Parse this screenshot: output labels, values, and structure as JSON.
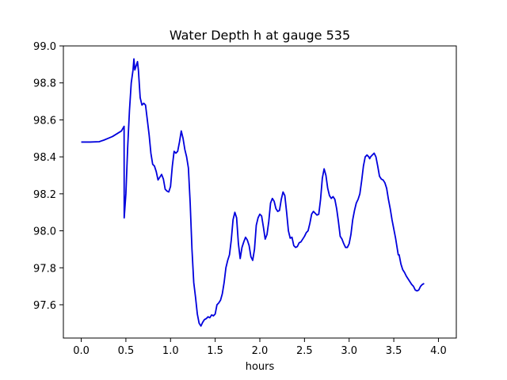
{
  "chart_data": {
    "type": "line",
    "title": "Water Depth h at gauge 535",
    "xlabel": "hours",
    "ylabel": "",
    "xlim": [
      -0.2,
      4.2
    ],
    "ylim": [
      97.42,
      99.0
    ],
    "xticks": [
      0.0,
      0.5,
      1.0,
      1.5,
      2.0,
      2.5,
      3.0,
      3.5,
      4.0
    ],
    "xtick_labels": [
      "0.0",
      "0.5",
      "1.0",
      "1.5",
      "2.0",
      "2.5",
      "3.0",
      "3.5",
      "4.0"
    ],
    "yticks": [
      97.6,
      97.8,
      98.0,
      98.2,
      98.4,
      98.6,
      98.8,
      99.0
    ],
    "ytick_labels": [
      "97.6",
      "97.8",
      "98.0",
      "98.2",
      "98.4",
      "98.6",
      "98.8",
      "99.0"
    ],
    "grid": false,
    "line_color": "#0000dd",
    "series": [
      {
        "points": [
          [
            0.0,
            98.48
          ],
          [
            0.1,
            98.48
          ],
          [
            0.2,
            98.482
          ],
          [
            0.25,
            98.49
          ],
          [
            0.3,
            98.5
          ],
          [
            0.35,
            98.51
          ],
          [
            0.4,
            98.525
          ],
          [
            0.45,
            98.54
          ],
          [
            0.48,
            98.565
          ],
          [
            0.481,
            98.07
          ],
          [
            0.5,
            98.2
          ],
          [
            0.52,
            98.45
          ],
          [
            0.54,
            98.65
          ],
          [
            0.56,
            98.8
          ],
          [
            0.58,
            98.87
          ],
          [
            0.59,
            98.93
          ],
          [
            0.6,
            98.87
          ],
          [
            0.62,
            98.9
          ],
          [
            0.63,
            98.915
          ],
          [
            0.64,
            98.87
          ],
          [
            0.66,
            98.72
          ],
          [
            0.68,
            98.68
          ],
          [
            0.7,
            98.69
          ],
          [
            0.72,
            98.68
          ],
          [
            0.74,
            98.6
          ],
          [
            0.76,
            98.52
          ],
          [
            0.78,
            98.42
          ],
          [
            0.8,
            98.36
          ],
          [
            0.82,
            98.35
          ],
          [
            0.84,
            98.32
          ],
          [
            0.86,
            98.275
          ],
          [
            0.88,
            98.29
          ],
          [
            0.9,
            98.305
          ],
          [
            0.92,
            98.28
          ],
          [
            0.94,
            98.225
          ],
          [
            0.96,
            98.215
          ],
          [
            0.98,
            98.21
          ],
          [
            1.0,
            98.24
          ],
          [
            1.02,
            98.35
          ],
          [
            1.04,
            98.43
          ],
          [
            1.06,
            98.42
          ],
          [
            1.08,
            98.43
          ],
          [
            1.1,
            98.48
          ],
          [
            1.12,
            98.54
          ],
          [
            1.14,
            98.5
          ],
          [
            1.16,
            98.44
          ],
          [
            1.18,
            98.4
          ],
          [
            1.2,
            98.34
          ],
          [
            1.22,
            98.15
          ],
          [
            1.24,
            97.9
          ],
          [
            1.26,
            97.72
          ],
          [
            1.28,
            97.64
          ],
          [
            1.3,
            97.55
          ],
          [
            1.32,
            97.5
          ],
          [
            1.34,
            97.485
          ],
          [
            1.36,
            97.505
          ],
          [
            1.38,
            97.52
          ],
          [
            1.4,
            97.525
          ],
          [
            1.42,
            97.535
          ],
          [
            1.44,
            97.53
          ],
          [
            1.46,
            97.545
          ],
          [
            1.48,
            97.54
          ],
          [
            1.5,
            97.55
          ],
          [
            1.52,
            97.6
          ],
          [
            1.54,
            97.61
          ],
          [
            1.56,
            97.625
          ],
          [
            1.58,
            97.66
          ],
          [
            1.6,
            97.72
          ],
          [
            1.62,
            97.8
          ],
          [
            1.64,
            97.84
          ],
          [
            1.66,
            97.87
          ],
          [
            1.68,
            97.95
          ],
          [
            1.7,
            98.06
          ],
          [
            1.72,
            98.1
          ],
          [
            1.74,
            98.07
          ],
          [
            1.76,
            97.93
          ],
          [
            1.78,
            97.85
          ],
          [
            1.8,
            97.91
          ],
          [
            1.82,
            97.94
          ],
          [
            1.84,
            97.965
          ],
          [
            1.86,
            97.95
          ],
          [
            1.88,
            97.92
          ],
          [
            1.9,
            97.86
          ],
          [
            1.92,
            97.84
          ],
          [
            1.94,
            97.9
          ],
          [
            1.96,
            98.03
          ],
          [
            1.98,
            98.07
          ],
          [
            2.0,
            98.09
          ],
          [
            2.02,
            98.08
          ],
          [
            2.04,
            98.02
          ],
          [
            2.06,
            97.955
          ],
          [
            2.08,
            97.98
          ],
          [
            2.1,
            98.05
          ],
          [
            2.12,
            98.15
          ],
          [
            2.14,
            98.175
          ],
          [
            2.16,
            98.16
          ],
          [
            2.18,
            98.12
          ],
          [
            2.2,
            98.105
          ],
          [
            2.22,
            98.11
          ],
          [
            2.24,
            98.17
          ],
          [
            2.26,
            98.21
          ],
          [
            2.28,
            98.19
          ],
          [
            2.3,
            98.1
          ],
          [
            2.32,
            98.0
          ],
          [
            2.34,
            97.96
          ],
          [
            2.36,
            97.965
          ],
          [
            2.38,
            97.92
          ],
          [
            2.4,
            97.91
          ],
          [
            2.42,
            97.915
          ],
          [
            2.44,
            97.935
          ],
          [
            2.46,
            97.94
          ],
          [
            2.48,
            97.955
          ],
          [
            2.5,
            97.97
          ],
          [
            2.52,
            97.99
          ],
          [
            2.54,
            98.0
          ],
          [
            2.56,
            98.04
          ],
          [
            2.58,
            98.09
          ],
          [
            2.6,
            98.105
          ],
          [
            2.62,
            98.095
          ],
          [
            2.64,
            98.085
          ],
          [
            2.66,
            98.09
          ],
          [
            2.68,
            98.17
          ],
          [
            2.7,
            98.285
          ],
          [
            2.72,
            98.335
          ],
          [
            2.74,
            98.3
          ],
          [
            2.76,
            98.23
          ],
          [
            2.78,
            98.19
          ],
          [
            2.8,
            98.175
          ],
          [
            2.82,
            98.185
          ],
          [
            2.84,
            98.17
          ],
          [
            2.86,
            98.12
          ],
          [
            2.88,
            98.05
          ],
          [
            2.9,
            97.97
          ],
          [
            2.92,
            97.955
          ],
          [
            2.94,
            97.93
          ],
          [
            2.96,
            97.91
          ],
          [
            2.98,
            97.91
          ],
          [
            3.0,
            97.93
          ],
          [
            3.02,
            97.98
          ],
          [
            3.04,
            98.06
          ],
          [
            3.06,
            98.11
          ],
          [
            3.08,
            98.15
          ],
          [
            3.1,
            98.17
          ],
          [
            3.12,
            98.2
          ],
          [
            3.14,
            98.27
          ],
          [
            3.16,
            98.35
          ],
          [
            3.18,
            98.4
          ],
          [
            3.2,
            98.41
          ],
          [
            3.22,
            98.4
          ],
          [
            3.23,
            98.39
          ],
          [
            3.24,
            98.4
          ],
          [
            3.26,
            98.41
          ],
          [
            3.28,
            98.42
          ],
          [
            3.3,
            98.4
          ],
          [
            3.32,
            98.35
          ],
          [
            3.34,
            98.295
          ],
          [
            3.36,
            98.28
          ],
          [
            3.38,
            98.275
          ],
          [
            3.4,
            98.26
          ],
          [
            3.42,
            98.23
          ],
          [
            3.44,
            98.17
          ],
          [
            3.46,
            98.12
          ],
          [
            3.48,
            98.06
          ],
          [
            3.5,
            98.01
          ],
          [
            3.52,
            97.96
          ],
          [
            3.54,
            97.9
          ],
          [
            3.55,
            97.87
          ],
          [
            3.56,
            97.87
          ],
          [
            3.58,
            97.82
          ],
          [
            3.6,
            97.79
          ],
          [
            3.62,
            97.775
          ],
          [
            3.64,
            97.755
          ],
          [
            3.66,
            97.74
          ],
          [
            3.68,
            97.725
          ],
          [
            3.7,
            97.71
          ],
          [
            3.72,
            97.7
          ],
          [
            3.74,
            97.68
          ],
          [
            3.76,
            97.675
          ],
          [
            3.78,
            97.68
          ],
          [
            3.8,
            97.7
          ],
          [
            3.82,
            97.71
          ],
          [
            3.84,
            97.715
          ]
        ]
      }
    ]
  }
}
